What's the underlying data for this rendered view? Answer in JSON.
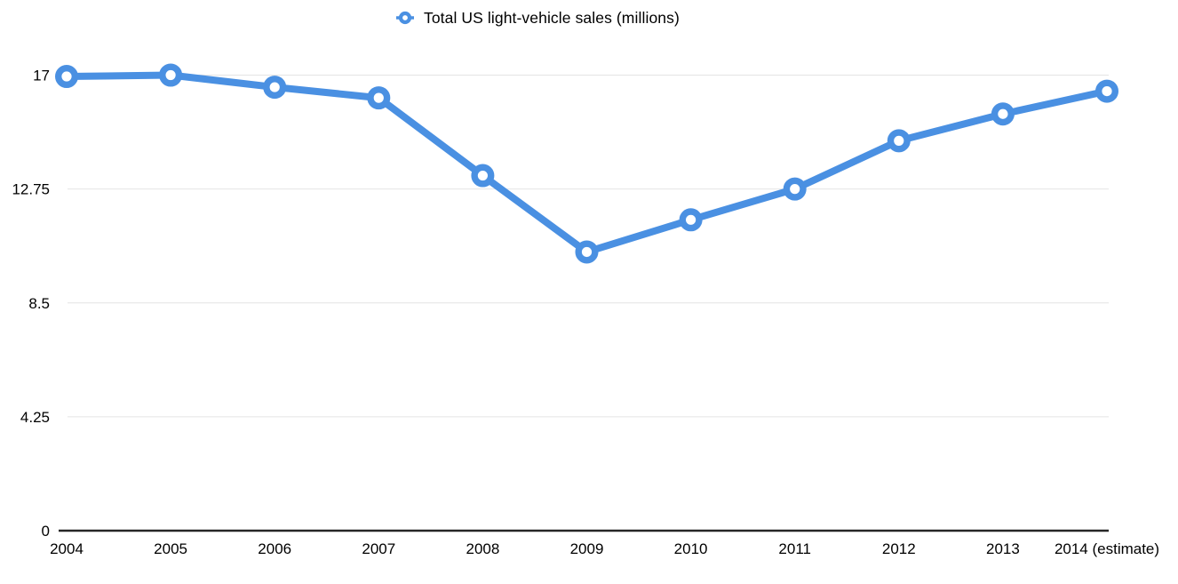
{
  "page": {
    "background_color": "#ffffff"
  },
  "legend": {
    "label": "Total US light-vehicle sales (millions)",
    "position": "top-center"
  },
  "chart_data": {
    "type": "line",
    "title": "",
    "xlabel": "",
    "ylabel": "",
    "categories": [
      "2004",
      "2005",
      "2006",
      "2007",
      "2008",
      "2009",
      "2010",
      "2011",
      "2012",
      "2013",
      "2014 (estimate)"
    ],
    "series": [
      {
        "name": "Total US light-vehicle sales (millions)",
        "values": [
          16.95,
          17.0,
          16.55,
          16.15,
          13.25,
          10.4,
          11.6,
          12.75,
          14.55,
          15.55,
          16.4
        ]
      }
    ],
    "ylim": [
      0,
      17
    ],
    "y_ticks": [
      17,
      12.75,
      8.5,
      4.25,
      0
    ],
    "y_tick_labels": [
      "17",
      "12.75",
      "8.5",
      "4.25",
      "0"
    ],
    "grid": true,
    "legend_position": "top-center",
    "line_color": "#4a90e2",
    "marker_fill": "#ffffff",
    "grid_color": "#e4e4e4",
    "axis_color": "#262626",
    "text_color": "#000000"
  }
}
